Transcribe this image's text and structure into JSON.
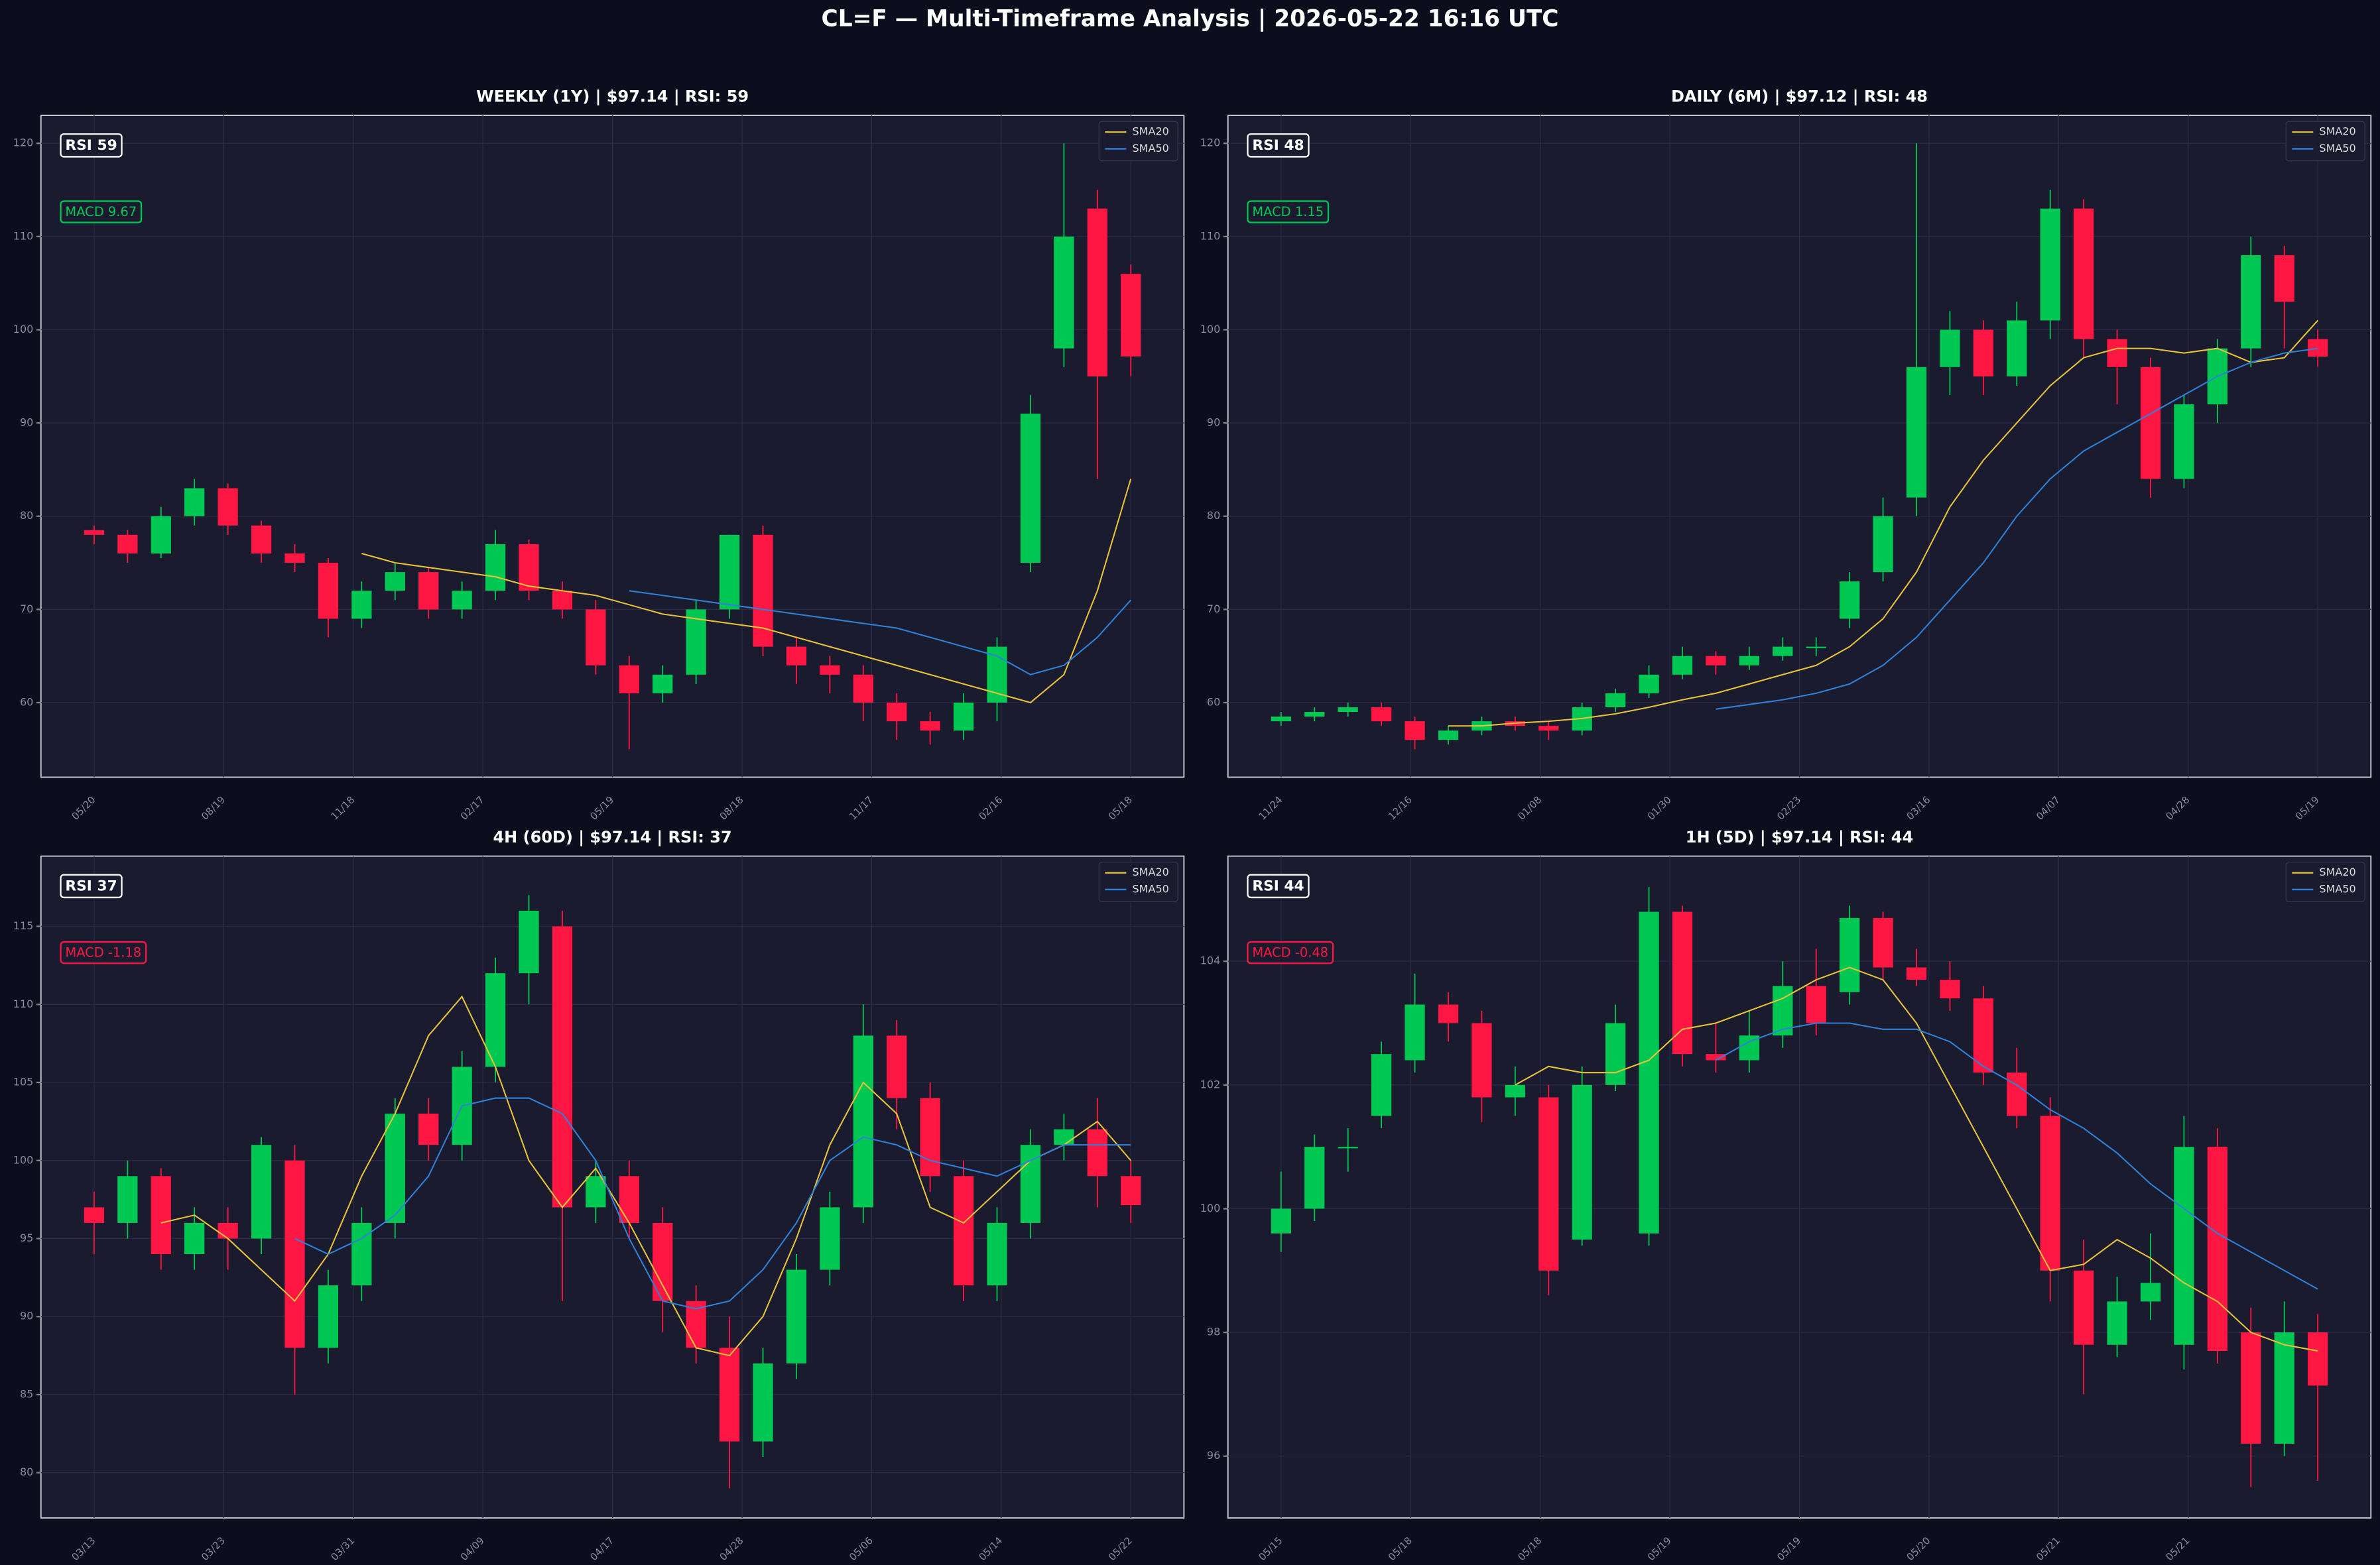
{
  "title": "CL=F — Multi-Timeframe Analysis  |  2026-05-22 16:16 UTC",
  "chart_data": [
    {
      "type": "candlestick",
      "title": "WEEKLY (1Y)  |  $97.14  |  RSI: 59",
      "rsi_label": "RSI 59",
      "macd_label": "MACD 9.67",
      "macd_color": "#00c853",
      "up_color": "#00c853",
      "down_color": "#ff1744",
      "ylim": [
        52,
        123
      ],
      "yticks": [
        60,
        70,
        80,
        90,
        100,
        110,
        120
      ],
      "grid": true,
      "legend": "upper right",
      "xtick_labels": [
        "05/20",
        "08/19",
        "11/18",
        "02/17",
        "05/19",
        "08/18",
        "11/17",
        "02/16",
        "05/18"
      ],
      "open": [
        78.5,
        78,
        76,
        80,
        83,
        79,
        76,
        75,
        69,
        72,
        74,
        70,
        72,
        77,
        72,
        70,
        64,
        61,
        63,
        70,
        78,
        66,
        64,
        63,
        60,
        58,
        57,
        60,
        75,
        98,
        113,
        106
      ],
      "high": [
        79,
        78.5,
        81,
        84,
        83.5,
        79.5,
        77,
        75.5,
        73,
        75,
        74.5,
        73,
        78.5,
        77.5,
        73,
        71,
        65,
        64,
        71,
        78,
        79,
        67,
        65,
        64,
        61,
        59,
        61,
        67,
        93,
        120,
        115,
        107
      ],
      "low": [
        77,
        75,
        75.5,
        79,
        78,
        75,
        74,
        67,
        68,
        71,
        69,
        69,
        71,
        71,
        69,
        63,
        55,
        60,
        62,
        69,
        65,
        62,
        61,
        58,
        56,
        55.5,
        56,
        58,
        74,
        96,
        84,
        95
      ],
      "close": [
        78,
        76,
        80,
        83,
        79,
        76,
        75,
        69,
        72,
        74,
        70,
        72,
        77,
        72,
        70,
        64,
        61,
        63,
        70,
        78,
        66,
        64,
        63,
        60,
        58,
        57,
        60,
        66,
        91,
        110,
        95,
        97.14
      ],
      "series": [
        {
          "name": "SMA20",
          "color": "#e8c33a",
          "values": [
            null,
            null,
            null,
            null,
            null,
            null,
            null,
            null,
            76,
            75,
            74.5,
            74,
            73.5,
            72.5,
            72,
            71.5,
            70.5,
            69.5,
            69,
            68.5,
            68,
            67,
            66,
            65,
            64,
            63,
            62,
            61,
            60,
            63,
            72,
            84
          ]
        },
        {
          "name": "SMA50",
          "color": "#2f80d8",
          "values": [
            null,
            null,
            null,
            null,
            null,
            null,
            null,
            null,
            null,
            null,
            null,
            null,
            null,
            null,
            null,
            null,
            72,
            71.5,
            71,
            70.5,
            70,
            69.5,
            69,
            68.5,
            68,
            67,
            66,
            65,
            63,
            64,
            67,
            71
          ]
        }
      ]
    },
    {
      "type": "candlestick",
      "title": "DAILY (6M)  |  $97.12  |  RSI: 48",
      "rsi_label": "RSI 48",
      "macd_label": "MACD 1.15",
      "macd_color": "#00c853",
      "up_color": "#00c853",
      "down_color": "#ff1744",
      "ylim": [
        52,
        123
      ],
      "yticks": [
        60,
        70,
        80,
        90,
        100,
        110,
        120
      ],
      "grid": true,
      "legend": "upper right",
      "xtick_labels": [
        "11/24",
        "12/16",
        "01/08",
        "01/30",
        "02/23",
        "03/16",
        "04/07",
        "04/28",
        "05/19"
      ],
      "open": [
        58,
        58.5,
        59,
        59.5,
        58,
        56,
        57,
        58,
        57.5,
        57,
        59.5,
        61,
        63,
        65,
        64,
        65,
        66,
        69,
        74,
        82,
        96,
        100,
        95,
        101,
        113,
        99,
        96,
        84,
        92,
        98,
        108,
        99
      ],
      "high": [
        59,
        59.5,
        60,
        60,
        58.5,
        57.5,
        58.5,
        58.5,
        58,
        60,
        61.5,
        64,
        66,
        65.5,
        66,
        67,
        67,
        74,
        82,
        120,
        102,
        101,
        103,
        115,
        114,
        100,
        97,
        93,
        99,
        110,
        109,
        100
      ],
      "low": [
        57.5,
        58,
        58.5,
        57.5,
        55,
        55.5,
        56.5,
        57,
        56,
        56.5,
        59,
        60.5,
        62.5,
        63,
        63.5,
        64.5,
        65,
        68,
        73,
        80,
        93,
        93,
        94,
        99,
        97,
        92,
        82,
        83,
        90,
        96,
        98,
        96
      ],
      "close": [
        58.5,
        59,
        59.5,
        58,
        56,
        57,
        58,
        57.5,
        57,
        59.5,
        61,
        63,
        65,
        64,
        65,
        66,
        66,
        73,
        80,
        96,
        100,
        95,
        101,
        113,
        99,
        96,
        84,
        92,
        98,
        108,
        103,
        97.12
      ],
      "series": [
        {
          "name": "SMA20",
          "color": "#e8c33a",
          "values": [
            null,
            null,
            null,
            null,
            null,
            57.5,
            57.5,
            57.8,
            58,
            58.3,
            58.8,
            59.5,
            60.3,
            61,
            62,
            63,
            64,
            66,
            69,
            74,
            81,
            86,
            90,
            94,
            97,
            98,
            98,
            97.5,
            98,
            96.5,
            97,
            101
          ]
        },
        {
          "name": "SMA50",
          "color": "#2f80d8",
          "values": [
            null,
            null,
            null,
            null,
            null,
            null,
            null,
            null,
            null,
            null,
            null,
            null,
            null,
            59.3,
            59.8,
            60.3,
            61,
            62,
            64,
            67,
            71,
            75,
            80,
            84,
            87,
            89,
            91,
            93,
            95,
            96.5,
            97.5,
            98
          ]
        }
      ]
    },
    {
      "type": "candlestick",
      "title": "4H (60D)  |  $97.14  |  RSI: 37",
      "rsi_label": "RSI 37",
      "macd_label": "MACD -1.18",
      "macd_color": "#ff1744",
      "up_color": "#00c853",
      "down_color": "#ff1744",
      "ylim": [
        77.1,
        119.5
      ],
      "yticks": [
        80,
        85,
        90,
        95,
        100,
        105,
        110,
        115
      ],
      "grid": true,
      "legend": "upper right",
      "xtick_labels": [
        "03/13",
        "03/23",
        "03/31",
        "04/09",
        "04/17",
        "04/28",
        "05/06",
        "05/14",
        "05/22"
      ],
      "open": [
        97,
        96,
        99,
        94,
        96,
        95,
        100,
        88,
        92,
        96,
        103,
        101,
        106,
        112,
        115,
        97,
        99,
        96,
        91,
        88,
        82,
        87,
        93,
        97,
        108,
        104,
        99,
        92,
        96,
        101,
        102,
        99
      ],
      "high": [
        98,
        100,
        99.5,
        97,
        97,
        101.5,
        101,
        93,
        97,
        104,
        104,
        107,
        113,
        117,
        116,
        100,
        100,
        97,
        92,
        90,
        88,
        94,
        98,
        110,
        109,
        105,
        100,
        97,
        102,
        103,
        104,
        100
      ],
      "low": [
        94,
        95,
        93,
        93,
        93,
        94,
        85,
        87,
        91,
        95,
        100,
        100,
        105,
        110,
        91,
        96,
        95,
        89,
        87,
        79,
        81,
        86,
        92,
        96,
        102,
        98,
        91,
        91,
        95,
        100,
        97,
        96
      ],
      "close": [
        96,
        99,
        94,
        96,
        95,
        101,
        88,
        92,
        96,
        103,
        101,
        106,
        112,
        116,
        97,
        99,
        96,
        91,
        88,
        82,
        87,
        93,
        97,
        108,
        104,
        99,
        92,
        96,
        101,
        102,
        99,
        97.14
      ],
      "series": [
        {
          "name": "SMA20",
          "color": "#e8c33a",
          "values": [
            null,
            null,
            96,
            96.5,
            95,
            93,
            91,
            94,
            99,
            103,
            108,
            110.5,
            106,
            100,
            97,
            99.5,
            96,
            92,
            88,
            87.5,
            90,
            95,
            101,
            105,
            103,
            97,
            96,
            98,
            100,
            101,
            102.5,
            100
          ]
        },
        {
          "name": "SMA50",
          "color": "#2f80d8",
          "values": [
            null,
            null,
            null,
            null,
            null,
            null,
            95,
            94,
            95,
            96.5,
            99,
            103.5,
            104,
            104,
            103,
            100,
            95,
            91,
            90.5,
            91,
            93,
            96,
            100,
            101.5,
            101,
            100,
            99.5,
            99,
            100,
            101,
            101,
            101
          ]
        }
      ]
    },
    {
      "type": "candlestick",
      "title": "1H (5D)  |  $97.14  |  RSI: 44",
      "rsi_label": "RSI 44",
      "macd_label": "MACD -0.48",
      "macd_color": "#ff1744",
      "up_color": "#00c853",
      "down_color": "#ff1744",
      "ylim": [
        95,
        105.7
      ],
      "yticks": [
        96,
        98,
        100,
        102,
        104
      ],
      "grid": true,
      "legend": "upper right",
      "xtick_labels": [
        "05/15",
        "05/18",
        "05/18",
        "05/19",
        "05/19",
        "05/20",
        "05/21",
        "05/21"
      ],
      "open": [
        99.6,
        100,
        101,
        101.5,
        102.4,
        103.3,
        103,
        101.8,
        101.8,
        99.5,
        102,
        99.6,
        104.8,
        102.5,
        102.4,
        102.8,
        103.6,
        103.5,
        104.7,
        103.9,
        103.7,
        103.4,
        102.2,
        101.5,
        99,
        97.8,
        98.5,
        97.8,
        101,
        98,
        96.2,
        98
      ],
      "high": [
        100.6,
        101.2,
        101.3,
        102.7,
        103.8,
        103.5,
        103.2,
        102.3,
        102,
        102.3,
        103.3,
        105.2,
        104.9,
        103,
        103.2,
        104,
        104.2,
        104.9,
        104.8,
        104.2,
        104,
        103.6,
        102.6,
        101.8,
        99.5,
        98.9,
        99.6,
        101.5,
        101.3,
        98.4,
        98.5,
        98.3
      ],
      "low": [
        99.3,
        99.8,
        100.6,
        101.3,
        102.2,
        102.7,
        101.4,
        101.5,
        98.6,
        99.4,
        101.9,
        99.4,
        102.3,
        102.2,
        102.2,
        102.6,
        102.8,
        103.3,
        103.7,
        103.6,
        103.2,
        102,
        101.3,
        98.5,
        97,
        97.6,
        98.2,
        97.4,
        97.5,
        95.5,
        96,
        95.6
      ],
      "close": [
        100,
        101,
        101,
        102.5,
        103.3,
        103,
        101.8,
        102,
        99,
        102,
        103,
        104.8,
        102.5,
        102.4,
        102.8,
        103.6,
        103,
        104.7,
        103.9,
        103.7,
        103.4,
        102.2,
        101.5,
        99,
        97.8,
        98.5,
        98.8,
        101,
        97.7,
        96.2,
        98,
        97.14
      ],
      "series": [
        {
          "name": "SMA20",
          "color": "#e8c33a",
          "values": [
            null,
            null,
            null,
            null,
            null,
            null,
            null,
            102,
            102.3,
            102.2,
            102.2,
            102.4,
            102.9,
            103,
            103.2,
            103.4,
            103.7,
            103.9,
            103.7,
            103,
            102,
            101,
            100,
            99,
            99.1,
            99.5,
            99.2,
            98.8,
            98.5,
            98,
            97.8,
            97.7
          ]
        },
        {
          "name": "SMA50",
          "color": "#2f80d8",
          "values": [
            null,
            null,
            null,
            null,
            null,
            null,
            null,
            null,
            null,
            null,
            null,
            null,
            null,
            102.4,
            102.7,
            102.9,
            103,
            103,
            102.9,
            102.9,
            102.7,
            102.3,
            102,
            101.6,
            101.3,
            100.9,
            100.4,
            100,
            99.6,
            99.3,
            99,
            98.7
          ]
        }
      ]
    }
  ]
}
